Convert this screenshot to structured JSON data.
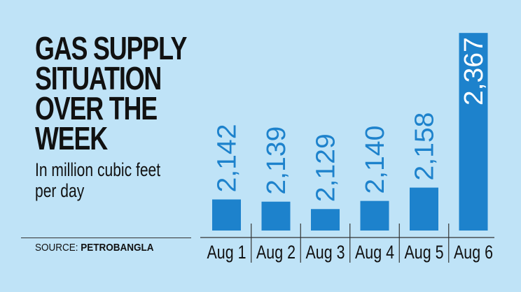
{
  "title_lines": [
    "GAS SUPPLY",
    "SITUATION",
    "OVER THE",
    "WEEK"
  ],
  "subtitle_lines": [
    "In million cubic feet",
    "per day"
  ],
  "source_prefix": "SOURCE:",
  "source_name": "PETROBANGLA",
  "colors": {
    "background": "#bfe3f7",
    "bar": "#1d82cc",
    "text": "#111111"
  },
  "chart_data": {
    "type": "bar",
    "title": "GAS SUPPLY SITUATION OVER THE WEEK",
    "subtitle": "In million cubic feet per day",
    "categories": [
      "Aug 1",
      "Aug 2",
      "Aug 3",
      "Aug 4",
      "Aug 5",
      "Aug 6"
    ],
    "values": [
      2142,
      2139,
      2129,
      2140,
      2158,
      2367
    ],
    "value_labels": [
      "2,142",
      "2,139",
      "2,129",
      "2,140",
      "2,158",
      "2,367"
    ],
    "ylim": [
      2100,
      2370
    ],
    "grid": false,
    "legend": "none"
  }
}
